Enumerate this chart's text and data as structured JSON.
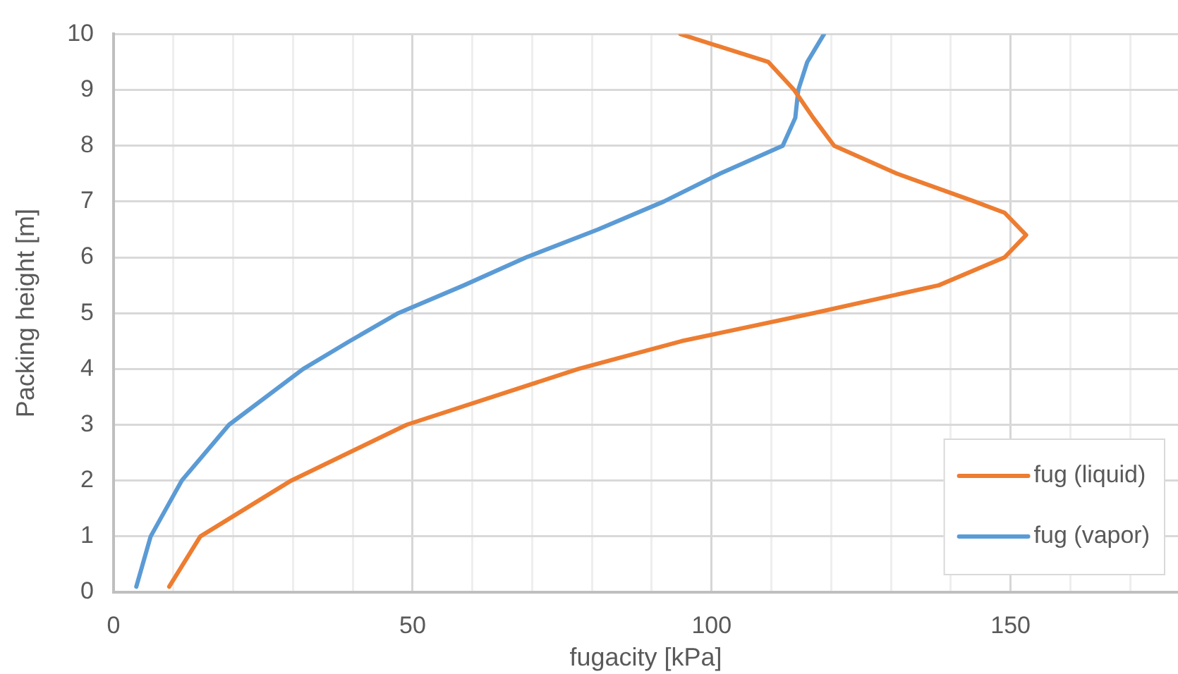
{
  "chart_data": {
    "type": "line",
    "xlabel": "fugacity [kPa]",
    "ylabel": "Packing height [m]",
    "xlim": [
      0,
      178
    ],
    "xticks": [
      0,
      {
        "value": 10,
        "label": null
      },
      {
        "value": 20,
        "label": null
      },
      {
        "value": 30,
        "label": null
      },
      {
        "value": 40,
        "label": null
      },
      50,
      {
        "value": 60,
        "label": null
      },
      {
        "value": 70,
        "label": null
      },
      {
        "value": 80,
        "label": null
      },
      {
        "value": 90,
        "label": null
      },
      100,
      {
        "value": 110,
        "label": null
      },
      {
        "value": 120,
        "label": null
      },
      {
        "value": 130,
        "label": null
      },
      {
        "value": 140,
        "label": null
      },
      150,
      {
        "value": 160,
        "label": null
      },
      {
        "value": 170,
        "label": null
      }
    ],
    "ylim": [
      0,
      10
    ],
    "yticks": [
      0,
      1,
      2,
      3,
      4,
      5,
      6,
      7,
      8,
      9,
      10
    ],
    "grid": true,
    "legend": "bottom right",
    "marker": "none",
    "line_style": "solid",
    "series": [
      {
        "name": "fug (liquid)",
        "color": "#ed7d31",
        "x": [
          9.3,
          14.5,
          29.7,
          49,
          77.7,
          95,
          117,
          138,
          149,
          152.6,
          149,
          144,
          131,
          120.5,
          117,
          113.8,
          109.5,
          94.8
        ],
        "values": [
          0.1,
          1,
          2,
          3,
          4,
          4.5,
          5,
          5.5,
          6,
          6.4,
          6.8,
          7,
          7.5,
          8,
          8.5,
          9,
          9.5,
          10
        ]
      },
      {
        "name": "fug (vapor)",
        "color": "#5b9bd5",
        "x": [
          3.8,
          6.2,
          11.4,
          19.3,
          31.7,
          39.5,
          47.6,
          58.6,
          69,
          81,
          92,
          101.4,
          111.9,
          114,
          114.5,
          116,
          118.8
        ],
        "values": [
          0.1,
          1,
          2,
          3,
          4,
          4.5,
          5,
          5.5,
          6,
          6.5,
          7,
          7.5,
          8,
          8.5,
          9,
          9.5,
          10
        ]
      }
    ]
  }
}
